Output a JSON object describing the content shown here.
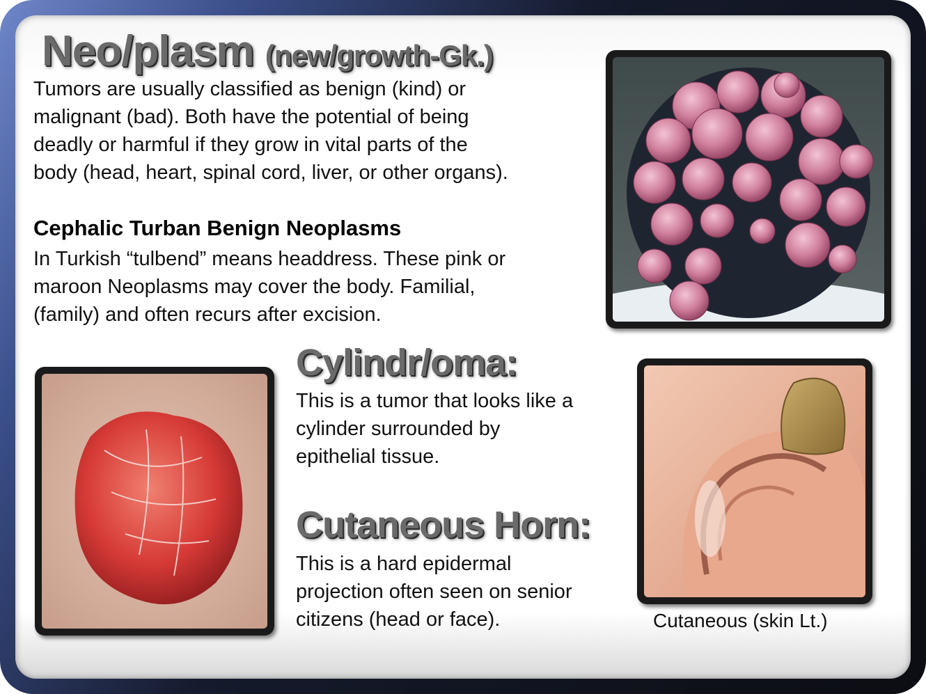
{
  "slide": {
    "neoplasm": {
      "title": "Neo/plasm",
      "title_suffix": "(new/growth-Gk.)",
      "lines": [
        "Tumors are usually classified as benign (kind) or",
        "malignant (bad). Both have the potential of being",
        "deadly or harmful if they grow in vital parts of the",
        "body (head, heart, spinal cord, liver, or other organs)."
      ]
    },
    "turban": {
      "heading": "Cephalic Turban Benign Neoplasms",
      "lines": [
        "In Turkish “tulbend” means headdress. These pink or",
        "maroon Neoplasms may cover the body. Familial,",
        "(family) and often recurs after excision."
      ]
    },
    "cylindroma": {
      "title": "Cylindr/oma:",
      "lines": [
        "This is a tumor that looks like a",
        "cylinder surrounded by",
        "epithelial  tissue."
      ]
    },
    "horn": {
      "title": "Cutaneous Horn:",
      "lines": [
        "This is a hard epidermal",
        "projection often seen on senior",
        "citizens (head or face)."
      ]
    },
    "ear_caption": "Cutaneous (skin Lt.)"
  },
  "colors": {
    "heading_gray": "#6a6a6a",
    "frame_blue": "#6f86c9",
    "frame_dark": "#0c0d12"
  }
}
